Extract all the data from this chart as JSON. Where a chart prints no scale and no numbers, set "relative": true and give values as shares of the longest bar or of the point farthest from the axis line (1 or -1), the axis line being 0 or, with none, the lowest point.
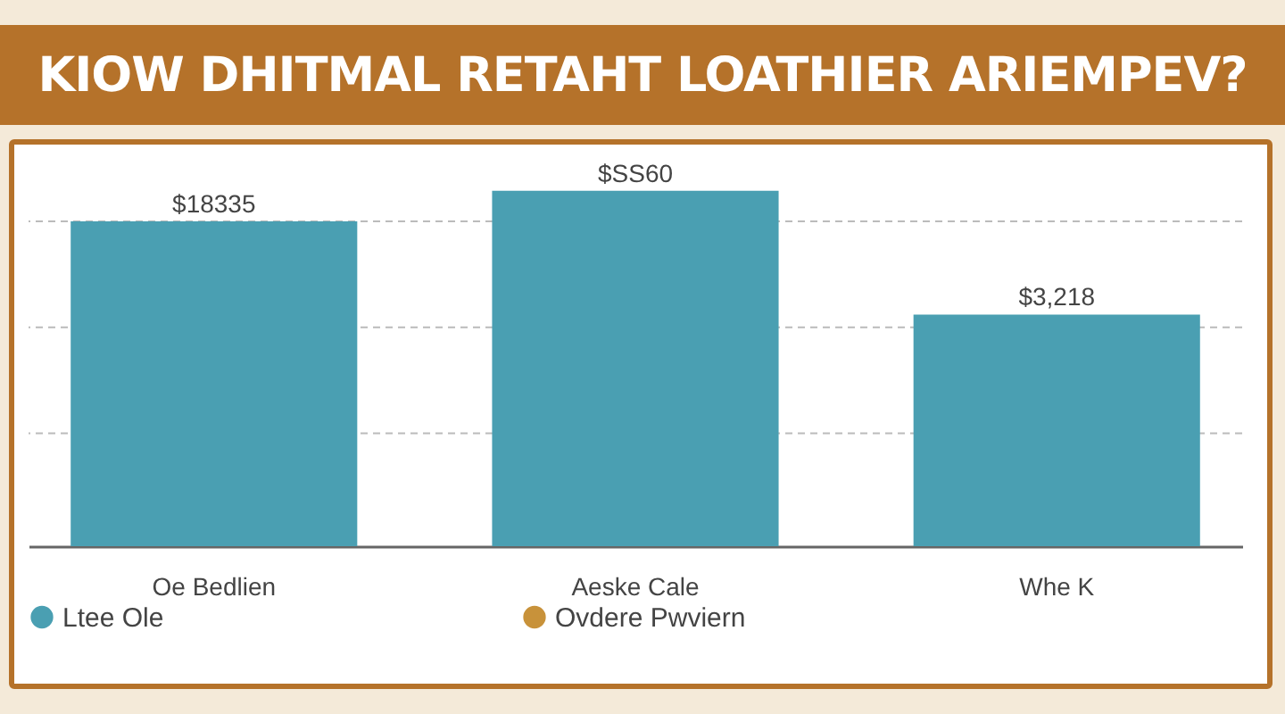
{
  "chart_data": {
    "type": "bar",
    "title": "KIOW DHITMAL RETAHT LOATHIER ARIEMPEV?",
    "categories": [
      "Oe Bedlien",
      "Aeske Cale",
      "Whe K"
    ],
    "relative": true,
    "legend": "bottom",
    "series": [
      {
        "name": "Ltee Ole",
        "color": "#4a9fb2",
        "values": [
          0.914,
          1,
          0.652
        ]
      },
      {
        "name": "Ovdere Pwviern",
        "color": "#c8923a",
        "values": [
          null,
          null,
          null
        ]
      }
    ],
    "annotations": [
      {
        "text": "$18335",
        "x": "Oe Bedlien",
        "y": 0.914
      },
      {
        "text": "$SS60",
        "x": "Aeske Cale",
        "y": 1
      },
      {
        "text": "$3,218",
        "x": "Whe K",
        "y": 0.652
      }
    ],
    "ref_lines": [
      {
        "axis": "y",
        "value": 0.914,
        "color": "#bbbbbb",
        "line_style": "dashed"
      },
      {
        "axis": "y",
        "value": 0.616,
        "color": "#bbbbbb",
        "line_style": "dashed"
      },
      {
        "axis": "y",
        "value": 0.318,
        "color": "#bbbbbb",
        "line_style": "dashed"
      }
    ]
  }
}
